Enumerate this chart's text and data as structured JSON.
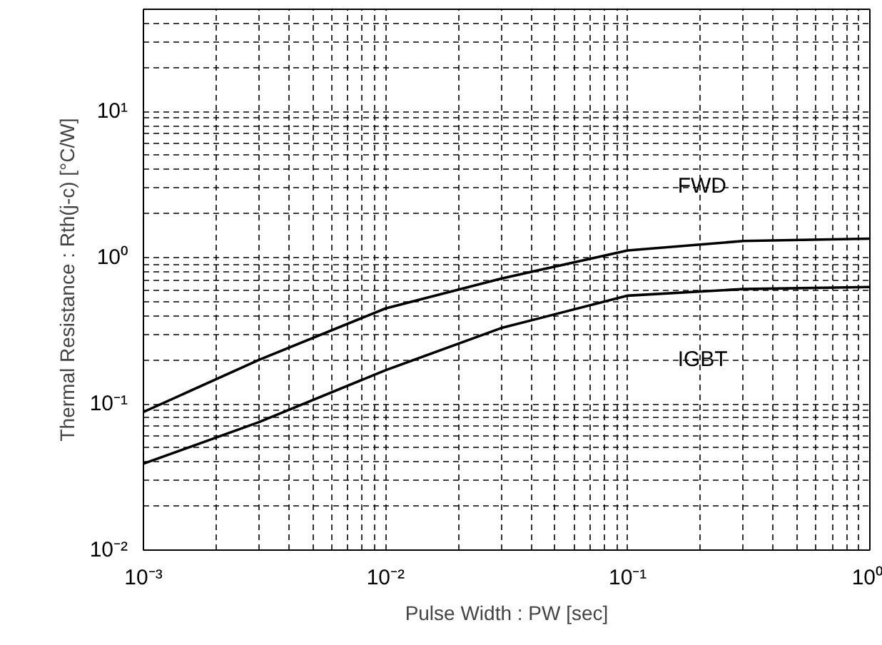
{
  "chart_data": {
    "type": "line",
    "xlabel": "Pulse Width : PW [sec]",
    "ylabel": "Thermal Resistance : Rth(j-c) [°C/W]",
    "log": "xy",
    "grid": true,
    "line_style": "solid",
    "marker": "none",
    "xlim": [
      0.001,
      1
    ],
    "ylim": [
      0.01,
      50
    ],
    "xticks": [
      {
        "value": 0.001,
        "label": "10⁻³"
      },
      {
        "value": 0.01,
        "label": "10⁻²"
      },
      {
        "value": 0.1,
        "label": "10⁻¹"
      },
      {
        "value": 1,
        "label": "10⁰"
      }
    ],
    "yticks": [
      {
        "value": 0.01,
        "label": "10⁻²"
      },
      {
        "value": 0.1,
        "label": "10⁻¹"
      },
      {
        "value": 1,
        "label": "10⁰"
      },
      {
        "value": 10,
        "label": "10¹"
      }
    ],
    "x": [
      0.001,
      0.003,
      0.01,
      0.03,
      0.1,
      0.3,
      1
    ],
    "series": [
      {
        "name": "FWD",
        "color": "#000000",
        "values": [
          0.088,
          0.2,
          0.45,
          0.72,
          1.12,
          1.3,
          1.35
        ]
      },
      {
        "name": "IGBT",
        "color": "#000000",
        "values": [
          0.039,
          0.075,
          0.17,
          0.33,
          0.55,
          0.61,
          0.63
        ]
      }
    ]
  }
}
